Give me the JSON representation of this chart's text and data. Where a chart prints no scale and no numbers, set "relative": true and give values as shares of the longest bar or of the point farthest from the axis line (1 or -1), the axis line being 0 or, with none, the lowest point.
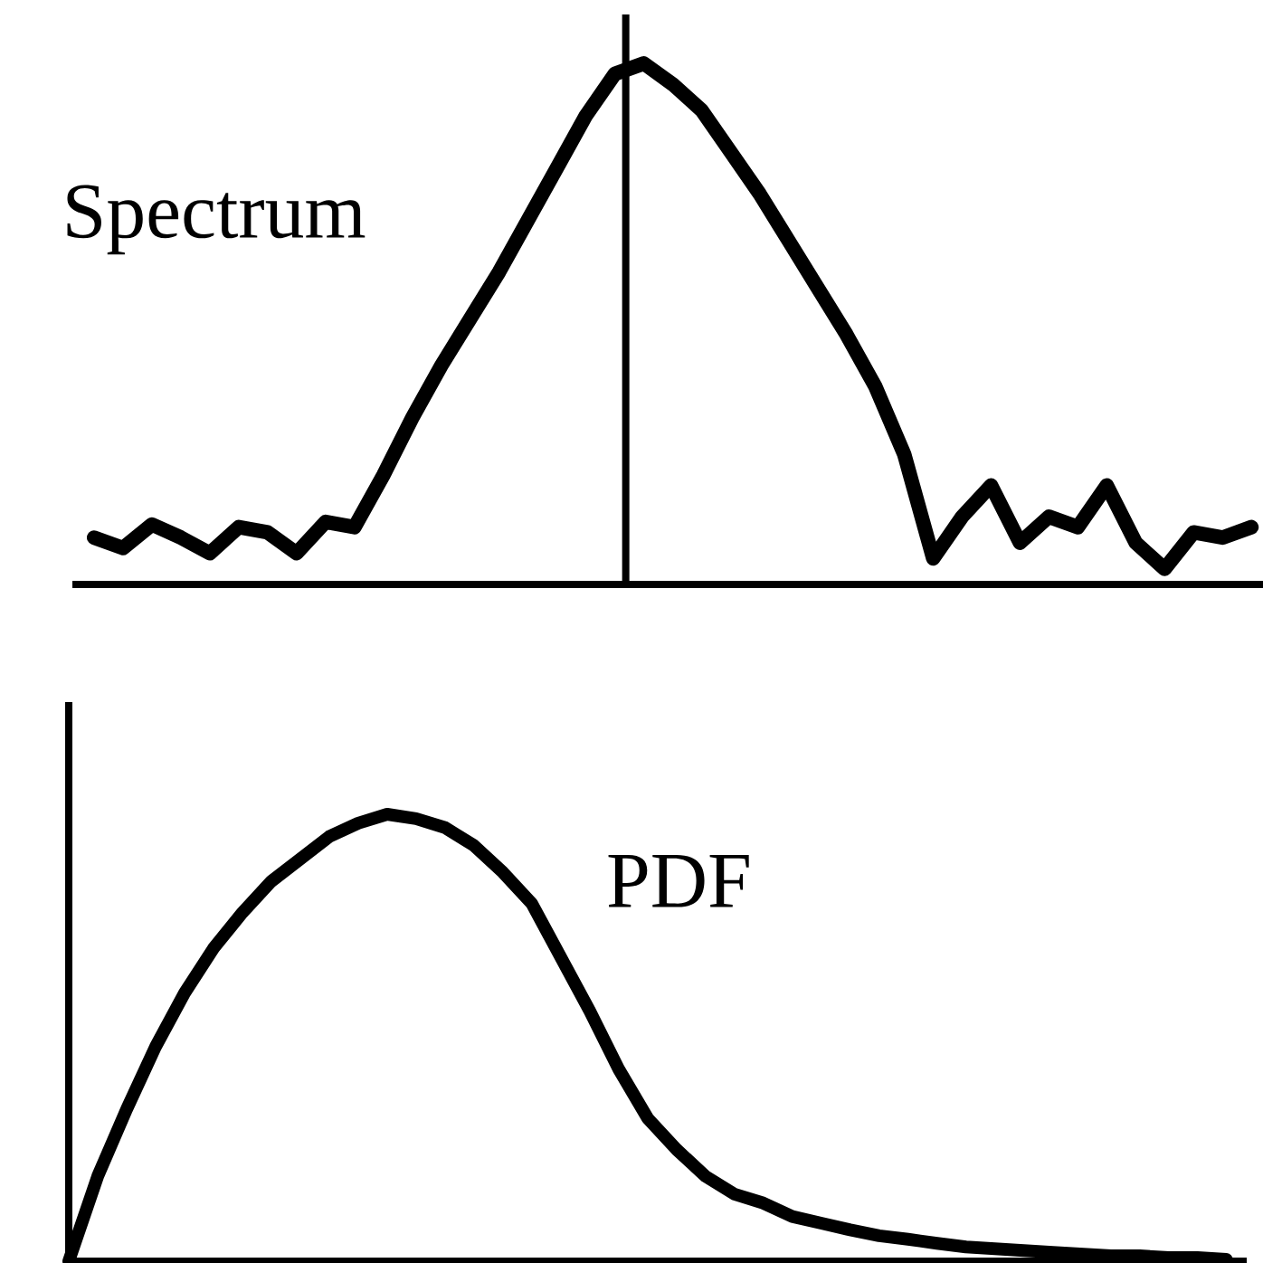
{
  "chart_data": [
    {
      "type": "line",
      "relative": true,
      "categories": [
        null,
        null,
        null,
        null,
        null,
        null,
        null,
        null,
        null,
        null,
        null,
        null,
        null,
        null,
        null,
        null,
        null,
        null,
        null,
        null,
        null,
        null,
        null,
        null,
        null,
        null,
        null,
        null,
        null,
        null,
        null,
        null,
        null,
        null,
        null,
        null,
        null,
        null,
        null,
        null,
        null
      ],
      "series": [
        {
          "name": "Spectrum",
          "color": "#000000",
          "values": [
            0.09,
            0.07,
            0.115,
            0.09,
            0.06,
            0.11,
            0.1,
            0.06,
            0.12,
            0.11,
            0.21,
            0.32,
            0.42,
            0.51,
            0.6,
            0.7,
            0.8,
            0.9,
            0.98,
            1.0,
            0.96,
            0.91,
            0.83,
            0.75,
            0.66,
            0.57,
            0.48,
            0.38,
            0.25,
            0.05,
            0.13,
            0.19,
            0.08,
            0.13,
            0.11,
            0.19,
            0.08,
            0.03,
            0.1,
            0.09,
            0.11
          ]
        }
      ]
    },
    {
      "type": "line",
      "relative": true,
      "categories": [
        null,
        null,
        null,
        null,
        null,
        null,
        null,
        null,
        null,
        null,
        null,
        null,
        null,
        null,
        null,
        null,
        null,
        null,
        null,
        null,
        null,
        null,
        null,
        null,
        null,
        null,
        null,
        null,
        null,
        null,
        null,
        null,
        null,
        null,
        null,
        null,
        null,
        null,
        null,
        null,
        null
      ],
      "series": [
        {
          "name": "PDF",
          "color": "#000000",
          "values": [
            0,
            0.19,
            0.34,
            0.48,
            0.6,
            0.7,
            0.78,
            0.85,
            0.9,
            0.95,
            0.98,
            1.0,
            0.99,
            0.97,
            0.93,
            0.87,
            0.8,
            0.68,
            0.56,
            0.43,
            0.32,
            0.25,
            0.19,
            0.15,
            0.13,
            0.1,
            0.085,
            0.07,
            0.057,
            0.049,
            0.04,
            0.032,
            0.028,
            0.024,
            0.02,
            0.016,
            0.012,
            0.012,
            0.008,
            0.008,
            0.004
          ]
        }
      ]
    }
  ]
}
